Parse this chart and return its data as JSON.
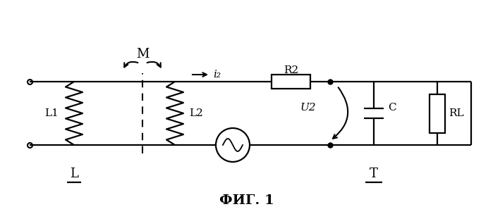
{
  "title": "ФИГ. 1",
  "bg_color": "#ffffff",
  "line_color": "#000000",
  "label_L": "L",
  "label_T": "T",
  "label_L1": "L1",
  "label_L2": "L2",
  "label_R2": "R2",
  "label_C": "C",
  "label_RL": "RL",
  "label_U2": "U2",
  "label_i2": "i₂",
  "label_M": "M"
}
